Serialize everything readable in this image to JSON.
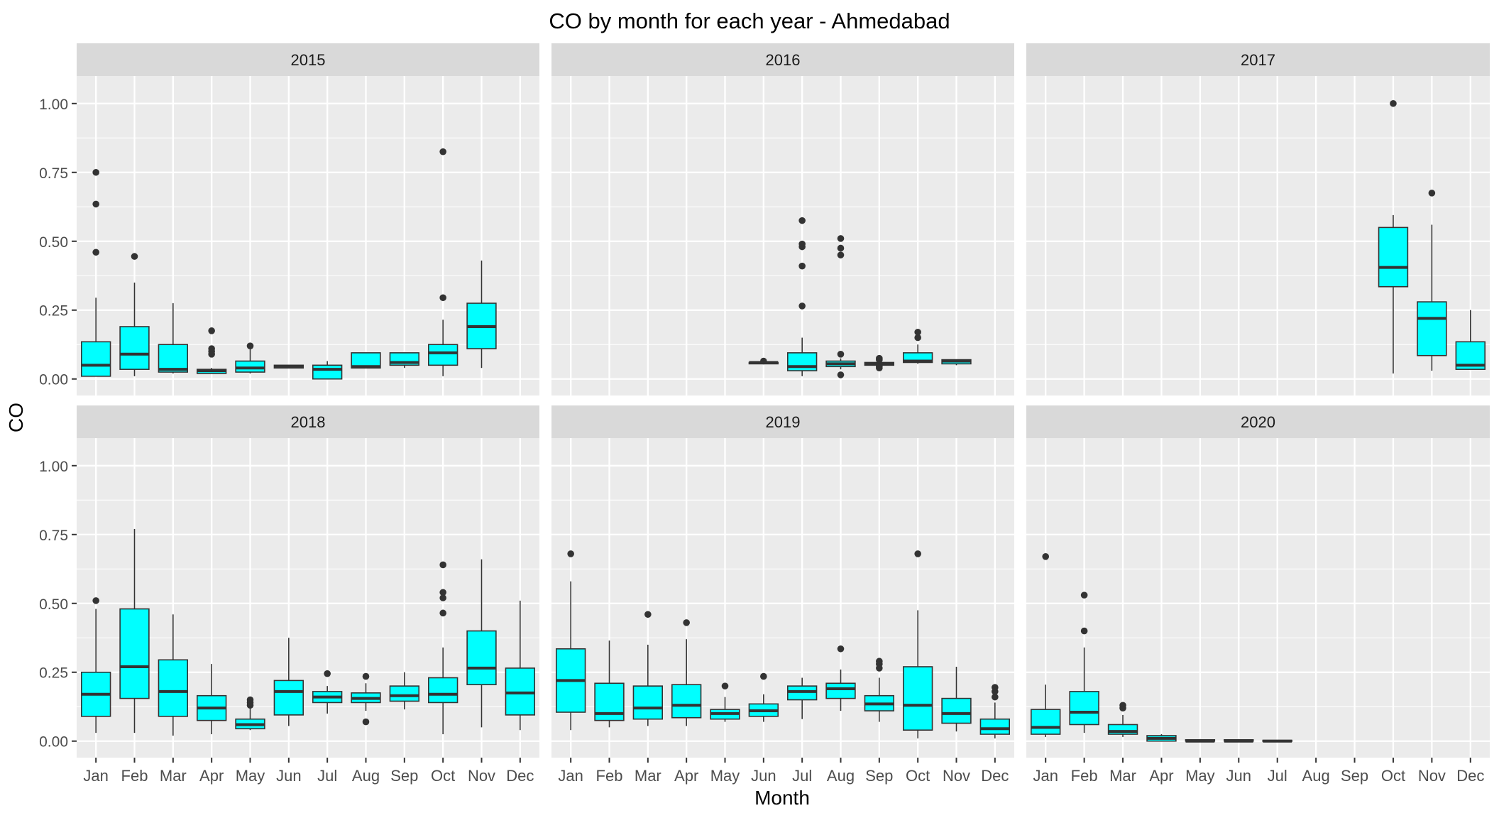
{
  "chart_data": {
    "type": "boxplot",
    "title": "CO by month for each year - Ahmedabad",
    "xlabel": "Month",
    "ylabel": "CO",
    "ylim": [
      -0.06,
      1.1
    ],
    "y_ticks": [
      "0.00",
      "0.25",
      "0.50",
      "0.75",
      "1.00"
    ],
    "y_tick_values": [
      0,
      0.25,
      0.5,
      0.75,
      1.0
    ],
    "categories": [
      "Jan",
      "Feb",
      "Mar",
      "Apr",
      "May",
      "Jun",
      "Jul",
      "Aug",
      "Sep",
      "Oct",
      "Nov",
      "Dec"
    ],
    "grid": true,
    "legend": "none",
    "colors": {
      "box_fill": "#00FFFF",
      "box_stroke": "#333333",
      "panel_bg": "#EBEBEB",
      "strip_bg": "#D9D9D9",
      "grid": "#FFFFFF",
      "outlier": "#333333"
    },
    "panels": [
      {
        "label": "2015",
        "boxes": [
          {
            "month": "Jan",
            "low": 0.01,
            "q1": 0.01,
            "median": 0.05,
            "q3": 0.135,
            "high": 0.295,
            "outliers": [
              0.46,
              0.635,
              0.75
            ]
          },
          {
            "month": "Feb",
            "low": 0.01,
            "q1": 0.035,
            "median": 0.09,
            "q3": 0.19,
            "high": 0.35,
            "outliers": [
              0.445
            ]
          },
          {
            "month": "Mar",
            "low": 0.02,
            "q1": 0.025,
            "median": 0.035,
            "q3": 0.125,
            "high": 0.275,
            "outliers": []
          },
          {
            "month": "Apr",
            "low": 0.02,
            "q1": 0.02,
            "median": 0.03,
            "q3": 0.035,
            "high": 0.04,
            "outliers": [
              0.09,
              0.1,
              0.11,
              0.175
            ]
          },
          {
            "month": "May",
            "low": 0.02,
            "q1": 0.025,
            "median": 0.04,
            "q3": 0.065,
            "high": 0.11,
            "outliers": [
              0.12
            ]
          },
          {
            "month": "Jun",
            "low": 0.04,
            "q1": 0.04,
            "median": 0.045,
            "q3": 0.05,
            "high": 0.05,
            "outliers": []
          },
          {
            "month": "Jul",
            "low": 0.0,
            "q1": 0.0,
            "median": 0.035,
            "q3": 0.05,
            "high": 0.065,
            "outliers": []
          },
          {
            "month": "Aug",
            "low": 0.04,
            "q1": 0.04,
            "median": 0.045,
            "q3": 0.095,
            "high": 0.095,
            "outliers": []
          },
          {
            "month": "Sep",
            "low": 0.04,
            "q1": 0.05,
            "median": 0.06,
            "q3": 0.095,
            "high": 0.095,
            "outliers": []
          },
          {
            "month": "Oct",
            "low": 0.01,
            "q1": 0.05,
            "median": 0.095,
            "q3": 0.125,
            "high": 0.215,
            "outliers": [
              0.295,
              0.825
            ]
          },
          {
            "month": "Nov",
            "low": 0.04,
            "q1": 0.11,
            "median": 0.19,
            "q3": 0.275,
            "high": 0.43,
            "outliers": []
          }
        ]
      },
      {
        "label": "2016",
        "boxes": [
          {
            "month": "Jun",
            "low": 0.055,
            "q1": 0.055,
            "median": 0.06,
            "q3": 0.06,
            "high": 0.06,
            "outliers": [
              0.065
            ]
          },
          {
            "month": "Jul",
            "low": 0.01,
            "q1": 0.03,
            "median": 0.045,
            "q3": 0.095,
            "high": 0.15,
            "outliers": [
              0.265,
              0.41,
              0.48,
              0.49,
              0.575
            ]
          },
          {
            "month": "Aug",
            "low": 0.035,
            "q1": 0.045,
            "median": 0.055,
            "q3": 0.065,
            "high": 0.075,
            "outliers": [
              0.015,
              0.09,
              0.45,
              0.475,
              0.51
            ]
          },
          {
            "month": "Sep",
            "low": 0.05,
            "q1": 0.05,
            "median": 0.055,
            "q3": 0.06,
            "high": 0.065,
            "outliers": [
              0.04,
              0.045,
              0.07,
              0.075
            ]
          },
          {
            "month": "Oct",
            "low": 0.055,
            "q1": 0.06,
            "median": 0.065,
            "q3": 0.095,
            "high": 0.125,
            "outliers": [
              0.15,
              0.17
            ]
          },
          {
            "month": "Nov",
            "low": 0.05,
            "q1": 0.055,
            "median": 0.065,
            "q3": 0.07,
            "high": 0.07,
            "outliers": []
          }
        ]
      },
      {
        "label": "2017",
        "boxes": [
          {
            "month": "Oct",
            "low": 0.02,
            "q1": 0.335,
            "median": 0.405,
            "q3": 0.55,
            "high": 0.595,
            "outliers": [
              1.0
            ]
          },
          {
            "month": "Nov",
            "low": 0.03,
            "q1": 0.085,
            "median": 0.22,
            "q3": 0.28,
            "high": 0.56,
            "outliers": [
              0.675
            ]
          },
          {
            "month": "Dec",
            "low": 0.035,
            "q1": 0.035,
            "median": 0.05,
            "q3": 0.135,
            "high": 0.25,
            "outliers": []
          }
        ]
      },
      {
        "label": "2018",
        "boxes": [
          {
            "month": "Jan",
            "low": 0.03,
            "q1": 0.09,
            "median": 0.17,
            "q3": 0.25,
            "high": 0.48,
            "outliers": [
              0.51
            ]
          },
          {
            "month": "Feb",
            "low": 0.03,
            "q1": 0.155,
            "median": 0.27,
            "q3": 0.48,
            "high": 0.77,
            "outliers": []
          },
          {
            "month": "Mar",
            "low": 0.02,
            "q1": 0.09,
            "median": 0.18,
            "q3": 0.295,
            "high": 0.46,
            "outliers": []
          },
          {
            "month": "Apr",
            "low": 0.025,
            "q1": 0.075,
            "median": 0.12,
            "q3": 0.165,
            "high": 0.28,
            "outliers": []
          },
          {
            "month": "May",
            "low": 0.04,
            "q1": 0.045,
            "median": 0.06,
            "q3": 0.08,
            "high": 0.12,
            "outliers": [
              0.13,
              0.14,
              0.15
            ]
          },
          {
            "month": "Jun",
            "low": 0.055,
            "q1": 0.095,
            "median": 0.18,
            "q3": 0.22,
            "high": 0.375,
            "outliers": []
          },
          {
            "month": "Jul",
            "low": 0.1,
            "q1": 0.14,
            "median": 0.16,
            "q3": 0.18,
            "high": 0.2,
            "outliers": [
              0.245
            ]
          },
          {
            "month": "Aug",
            "low": 0.11,
            "q1": 0.14,
            "median": 0.155,
            "q3": 0.175,
            "high": 0.21,
            "outliers": [
              0.07,
              0.235
            ]
          },
          {
            "month": "Sep",
            "low": 0.115,
            "q1": 0.145,
            "median": 0.165,
            "q3": 0.2,
            "high": 0.25,
            "outliers": []
          },
          {
            "month": "Oct",
            "low": 0.025,
            "q1": 0.14,
            "median": 0.17,
            "q3": 0.23,
            "high": 0.34,
            "outliers": [
              0.465,
              0.52,
              0.54,
              0.64
            ]
          },
          {
            "month": "Nov",
            "low": 0.05,
            "q1": 0.205,
            "median": 0.265,
            "q3": 0.4,
            "high": 0.66,
            "outliers": []
          },
          {
            "month": "Dec",
            "low": 0.04,
            "q1": 0.095,
            "median": 0.175,
            "q3": 0.265,
            "high": 0.51,
            "outliers": []
          }
        ]
      },
      {
        "label": "2019",
        "boxes": [
          {
            "month": "Jan",
            "low": 0.04,
            "q1": 0.105,
            "median": 0.22,
            "q3": 0.335,
            "high": 0.58,
            "outliers": [
              0.68
            ]
          },
          {
            "month": "Feb",
            "low": 0.05,
            "q1": 0.075,
            "median": 0.1,
            "q3": 0.21,
            "high": 0.365,
            "outliers": []
          },
          {
            "month": "Mar",
            "low": 0.055,
            "q1": 0.08,
            "median": 0.12,
            "q3": 0.2,
            "high": 0.35,
            "outliers": [
              0.46
            ]
          },
          {
            "month": "Apr",
            "low": 0.055,
            "q1": 0.085,
            "median": 0.13,
            "q3": 0.205,
            "high": 0.37,
            "outliers": [
              0.43
            ]
          },
          {
            "month": "May",
            "low": 0.07,
            "q1": 0.08,
            "median": 0.1,
            "q3": 0.115,
            "high": 0.16,
            "outliers": [
              0.2
            ]
          },
          {
            "month": "Jun",
            "low": 0.07,
            "q1": 0.09,
            "median": 0.11,
            "q3": 0.135,
            "high": 0.17,
            "outliers": [
              0.235
            ]
          },
          {
            "month": "Jul",
            "low": 0.08,
            "q1": 0.15,
            "median": 0.18,
            "q3": 0.2,
            "high": 0.23,
            "outliers": []
          },
          {
            "month": "Aug",
            "low": 0.11,
            "q1": 0.155,
            "median": 0.19,
            "q3": 0.21,
            "high": 0.26,
            "outliers": [
              0.335
            ]
          },
          {
            "month": "Sep",
            "low": 0.07,
            "q1": 0.11,
            "median": 0.135,
            "q3": 0.165,
            "high": 0.23,
            "outliers": [
              0.265,
              0.28,
              0.29
            ]
          },
          {
            "month": "Oct",
            "low": 0.01,
            "q1": 0.04,
            "median": 0.13,
            "q3": 0.27,
            "high": 0.475,
            "outliers": [
              0.68
            ]
          },
          {
            "month": "Nov",
            "low": 0.035,
            "q1": 0.065,
            "median": 0.1,
            "q3": 0.155,
            "high": 0.27,
            "outliers": []
          },
          {
            "month": "Dec",
            "low": 0.01,
            "q1": 0.025,
            "median": 0.045,
            "q3": 0.08,
            "high": 0.14,
            "outliers": [
              0.16,
              0.18,
              0.195
            ]
          }
        ]
      },
      {
        "label": "2020",
        "boxes": [
          {
            "month": "Jan",
            "low": 0.015,
            "q1": 0.025,
            "median": 0.05,
            "q3": 0.115,
            "high": 0.205,
            "outliers": [
              0.67
            ]
          },
          {
            "month": "Feb",
            "low": 0.03,
            "q1": 0.06,
            "median": 0.105,
            "q3": 0.18,
            "high": 0.34,
            "outliers": [
              0.4,
              0.53
            ]
          },
          {
            "month": "Mar",
            "low": 0.015,
            "q1": 0.025,
            "median": 0.035,
            "q3": 0.06,
            "high": 0.095,
            "outliers": [
              0.12,
              0.13
            ]
          },
          {
            "month": "Apr",
            "low": 0.0,
            "q1": 0.0,
            "median": 0.01,
            "q3": 0.02,
            "high": 0.025,
            "outliers": []
          },
          {
            "month": "May",
            "low": 0.0,
            "q1": 0.0,
            "median": 0.0,
            "q3": 0.005,
            "high": 0.005,
            "outliers": []
          },
          {
            "month": "Jun",
            "low": 0.0,
            "q1": 0.0,
            "median": 0.0,
            "q3": 0.005,
            "high": 0.005,
            "outliers": []
          },
          {
            "month": "Jul",
            "low": 0.0,
            "q1": 0.0,
            "median": 0.0,
            "q3": 0.003,
            "high": 0.003,
            "outliers": []
          }
        ]
      }
    ]
  }
}
